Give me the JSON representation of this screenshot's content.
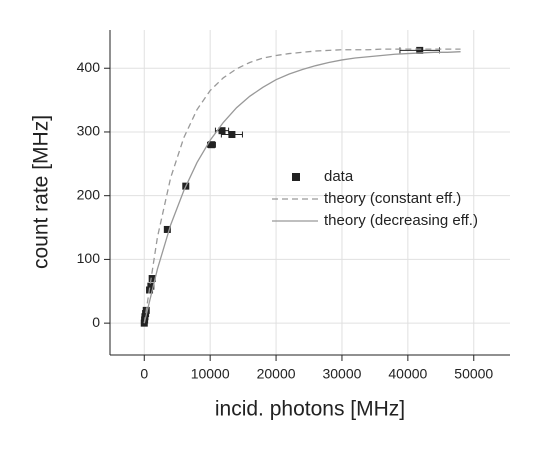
{
  "chart_data": {
    "type": "scatter",
    "x_label": "incid. photons [MHz]",
    "y_label": "count rate [MHz]",
    "xlim": [
      -5200,
      55500
    ],
    "ylim": [
      -50,
      460
    ],
    "xticks": [
      0,
      10000,
      20000,
      30000,
      40000,
      50000
    ],
    "yticks": [
      0,
      100,
      200,
      300,
      400
    ],
    "grid": true,
    "legend": "center-right",
    "series": [
      {
        "name": "data",
        "style": "markers",
        "color": "#222222",
        "x": [
          0,
          50,
          100,
          200,
          300,
          800,
          1000,
          1200,
          3500,
          6300,
          10200,
          11800,
          13300,
          41800
        ],
        "values": [
          0,
          5,
          10,
          15,
          20,
          52,
          58,
          70,
          147,
          215,
          280,
          302,
          296,
          428
        ],
        "x_errors": [
          null,
          null,
          null,
          null,
          null,
          null,
          null,
          null,
          null,
          null,
          600,
          1000,
          1600,
          3000
        ]
      },
      {
        "name": "theory (constant eff.)",
        "style": "dashed",
        "color": "#999999",
        "x": [
          0,
          2000,
          4000,
          6000,
          8000,
          10000,
          12000,
          14000,
          16000,
          18000,
          20000,
          22000,
          24000,
          26000,
          28000,
          30000,
          32000,
          34000,
          36000,
          38000,
          40000,
          42000,
          44000,
          46000,
          48000
        ],
        "values": [
          0,
          135,
          228,
          291,
          335,
          365,
          385,
          399,
          409,
          416,
          420,
          423,
          425,
          427,
          428,
          429,
          429,
          429,
          430,
          430,
          430,
          430,
          430,
          430,
          430
        ]
      },
      {
        "name": "theory (decreasing eff.)",
        "style": "solid",
        "color": "#999999",
        "x": [
          0,
          2000,
          4000,
          6000,
          8000,
          10000,
          12000,
          14000,
          16000,
          18000,
          20000,
          22000,
          24000,
          26000,
          28000,
          30000,
          32000,
          34000,
          36000,
          38000,
          40000,
          42000,
          44000,
          46000,
          48000
        ],
        "values": [
          0,
          85,
          154,
          208,
          252,
          287,
          315,
          338,
          356,
          370,
          382,
          391,
          398,
          404,
          409,
          413,
          416,
          418,
          420,
          422,
          423,
          424,
          425,
          425,
          426
        ]
      }
    ]
  }
}
